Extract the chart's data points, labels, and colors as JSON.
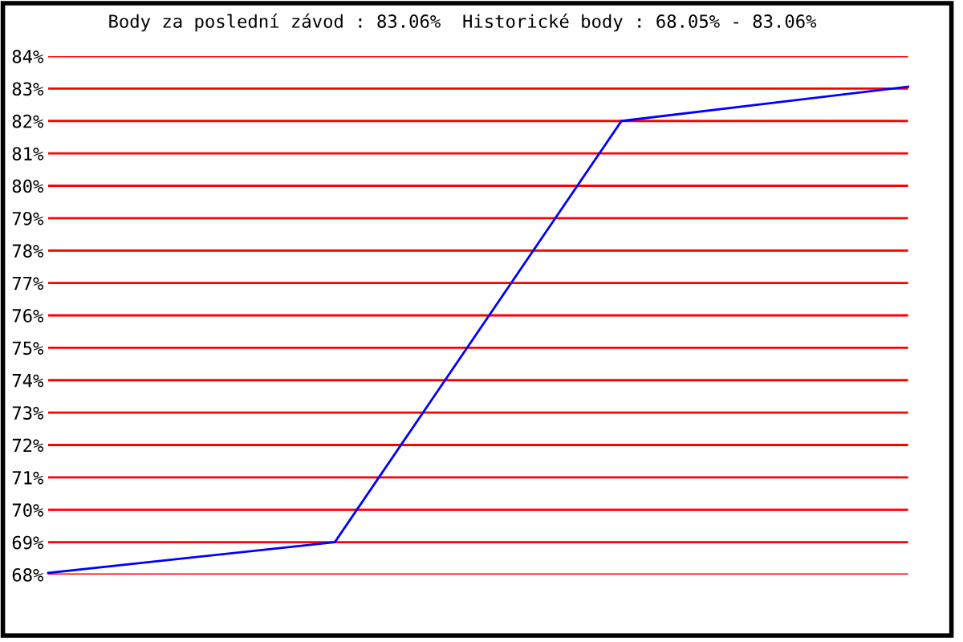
{
  "chart_data": {
    "type": "line",
    "title": "Body za poslední závod : 83.06%  Historické body : 68.05% - 83.06%",
    "categories": [
      null,
      null,
      null,
      null
    ],
    "series": [
      {
        "color": "#0000ff",
        "values": [
          68.05,
          69.0,
          82.0,
          83.06
        ]
      }
    ],
    "ylim": [
      68,
      84
    ],
    "yticks": [
      {
        "value": 68,
        "label": "68%"
      },
      {
        "value": 69,
        "label": "69%"
      },
      {
        "value": 70,
        "label": "70%"
      },
      {
        "value": 71,
        "label": "71%"
      },
      {
        "value": 72,
        "label": "72%"
      },
      {
        "value": 73,
        "label": "73%"
      },
      {
        "value": 74,
        "label": "74%"
      },
      {
        "value": 75,
        "label": "75%"
      },
      {
        "value": 76,
        "label": "76%"
      },
      {
        "value": 77,
        "label": "77%"
      },
      {
        "value": 78,
        "label": "78%"
      },
      {
        "value": 79,
        "label": "79%"
      },
      {
        "value": 80,
        "label": "80%"
      },
      {
        "value": 81,
        "label": "81%"
      },
      {
        "value": 82,
        "label": "82%"
      },
      {
        "value": 83,
        "label": "83%"
      },
      {
        "value": 84,
        "label": "84%"
      }
    ],
    "grid": "y",
    "tick_labels": "y",
    "marker": "none",
    "line_style": "solid",
    "legend": false
  }
}
